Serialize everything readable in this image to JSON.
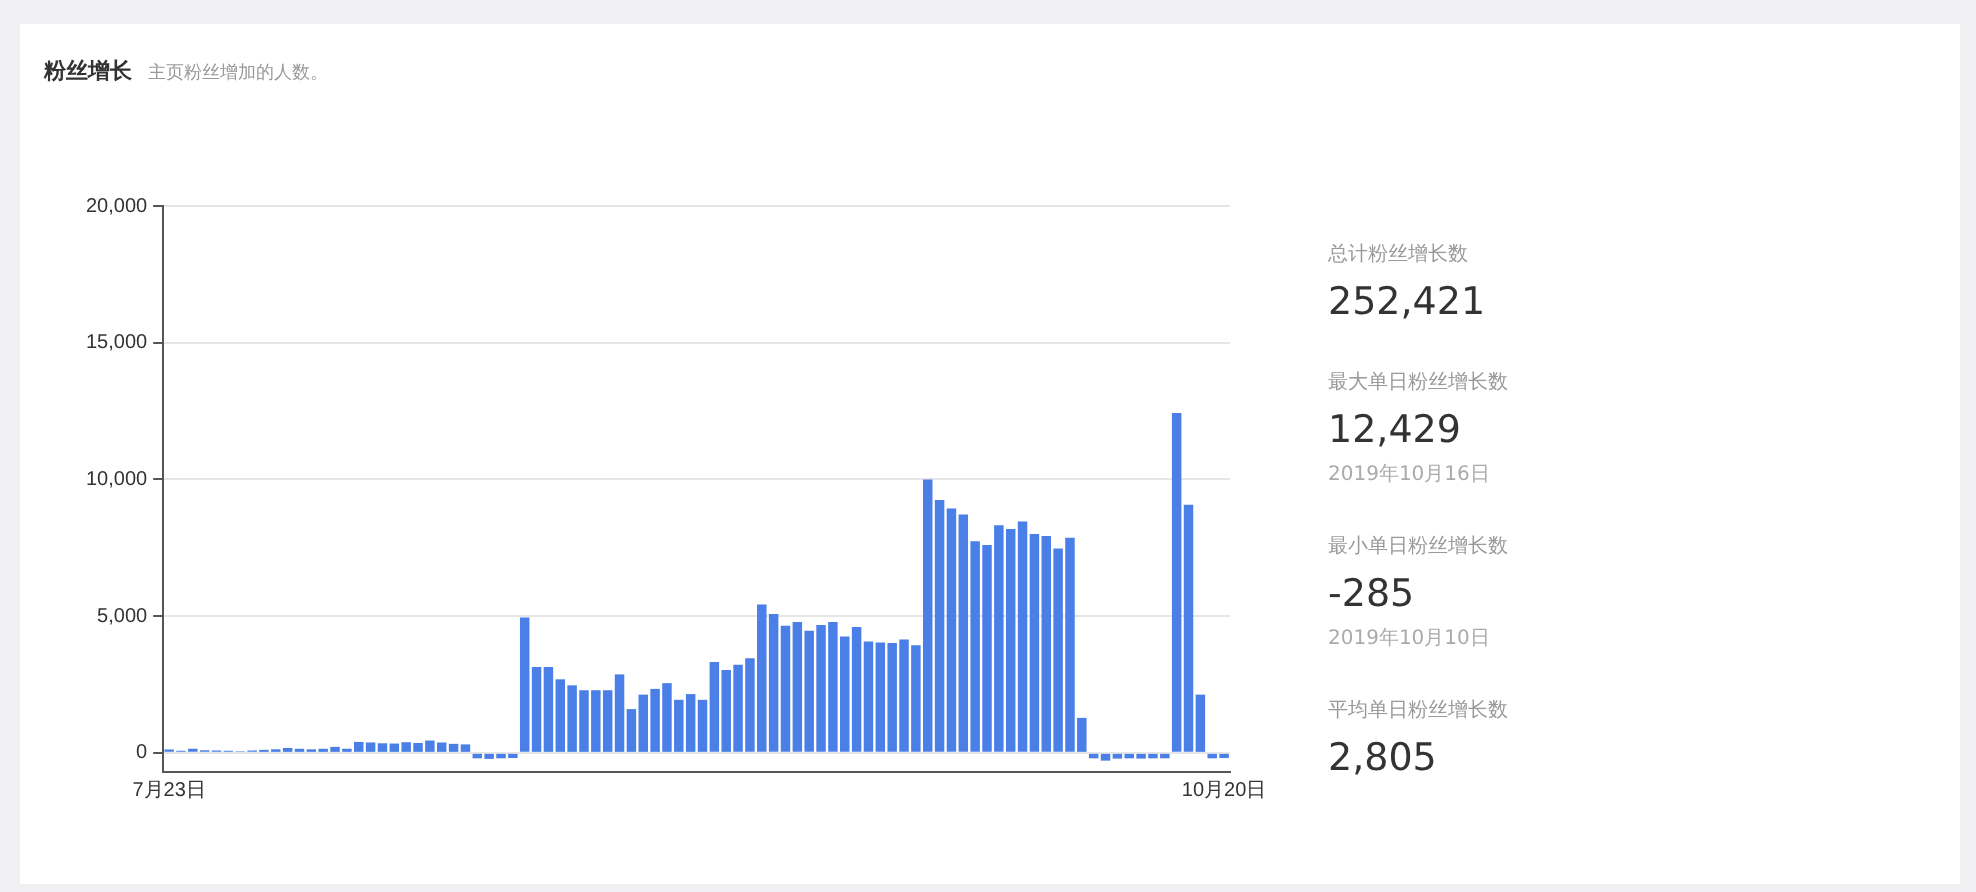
{
  "chart_data": {
    "type": "bar",
    "title": "粉丝增长",
    "subtitle": "主页粉丝增加的人数。",
    "categories": [
      "7月23日",
      null,
      null,
      null,
      null,
      null,
      null,
      null,
      null,
      null,
      null,
      null,
      null,
      null,
      null,
      null,
      null,
      null,
      null,
      null,
      null,
      null,
      null,
      null,
      null,
      null,
      null,
      null,
      null,
      null,
      null,
      null,
      null,
      null,
      null,
      null,
      null,
      null,
      null,
      null,
      null,
      null,
      null,
      null,
      null,
      null,
      null,
      null,
      null,
      null,
      null,
      null,
      null,
      null,
      null,
      null,
      null,
      null,
      null,
      null,
      null,
      null,
      null,
      null,
      null,
      null,
      null,
      null,
      null,
      null,
      null,
      null,
      null,
      null,
      null,
      null,
      null,
      null,
      null,
      null,
      null,
      null,
      null,
      null,
      null,
      null,
      null,
      null,
      null,
      "10月20日"
    ],
    "values": [
      120,
      80,
      150,
      100,
      90,
      80,
      60,
      90,
      110,
      130,
      180,
      150,
      130,
      150,
      220,
      150,
      400,
      380,
      350,
      340,
      390,
      360,
      450,
      380,
      330,
      310,
      -200,
      -220,
      -200,
      -190,
      4950,
      3140,
      3140,
      2690,
      2470,
      2290,
      2290,
      2290,
      2870,
      1600,
      2130,
      2340,
      2550,
      1940,
      2150,
      1940,
      3320,
      3030,
      3220,
      3460,
      5430,
      5080,
      4650,
      4790,
      4470,
      4680,
      4790,
      4260,
      4600,
      4070,
      4040,
      4020,
      4150,
      3940,
      10000,
      9250,
      8940,
      8720,
      7740,
      7600,
      8320,
      8190,
      8460,
      8000,
      7930,
      7470,
      7870,
      1280,
      -200,
      -285,
      -210,
      -200,
      -210,
      -200,
      -200,
      12429,
      9070,
      2130,
      -200,
      -190
    ],
    "color": "#4a7fe8",
    "ylim": [
      -700,
      20000
    ],
    "yticks": [
      0,
      {
        "value": 5000,
        "label": "5,000"
      },
      {
        "value": 10000,
        "label": "10,000"
      },
      {
        "value": 15000,
        "label": "15,000"
      },
      {
        "value": 20000,
        "label": "20,000"
      }
    ],
    "grid": "y",
    "annotations": [
      "总计粉丝增长数",
      "252,421",
      "最大单日粉丝增长数",
      "12,429",
      "2019年10月16日",
      "最小单日粉丝增长数",
      "-285",
      "2019年10月10日",
      "平均单日粉丝增长数",
      "2,805"
    ]
  }
}
